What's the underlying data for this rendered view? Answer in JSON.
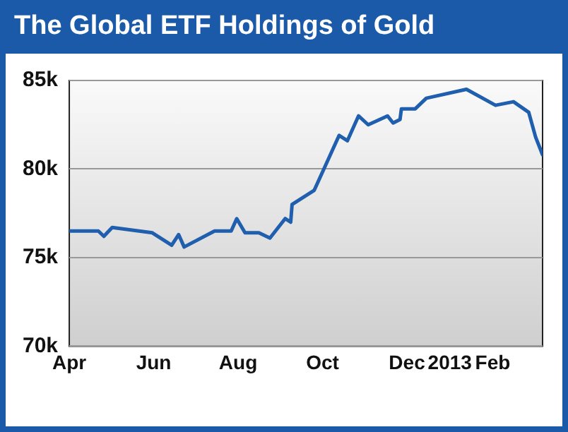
{
  "chart_data": {
    "type": "line",
    "title": "The Global ETF Holdings of Gold",
    "x": [
      "2012-04-01",
      "2012-04-22",
      "2012-04-26",
      "2012-05-02",
      "2012-05-31",
      "2012-06-14",
      "2012-06-19",
      "2012-06-23",
      "2012-07-15",
      "2012-07-27",
      "2012-07-31",
      "2012-08-06",
      "2012-08-16",
      "2012-08-24",
      "2012-09-04",
      "2012-09-08",
      "2012-09-09",
      "2012-09-25",
      "2012-10-13",
      "2012-10-19",
      "2012-10-27",
      "2012-11-03",
      "2012-11-17",
      "2012-11-21",
      "2012-11-26",
      "2012-11-27",
      "2012-12-07",
      "2012-12-15",
      "2013-01-13",
      "2013-02-03",
      "2013-02-16",
      "2013-02-27",
      "2013-03-04",
      "2013-03-09"
    ],
    "series": [
      {
        "color": "#1f5fad",
        "values": [
          76500,
          76500,
          76200,
          76700,
          76400,
          75700,
          76300,
          75600,
          76500,
          76500,
          77200,
          76400,
          76400,
          76100,
          77200,
          77000,
          78000,
          78800,
          81900,
          81600,
          83000,
          82500,
          83000,
          82600,
          82800,
          83400,
          83400,
          84000,
          84500,
          83600,
          83800,
          83200,
          81800,
          80800
        ]
      }
    ],
    "xlim": [
      "2012-04-01",
      "2013-03-09"
    ],
    "xticks": [
      {
        "value": "2012-04-01",
        "label": "Apr"
      },
      {
        "value": "2012-06-01",
        "label": "Jun"
      },
      {
        "value": "2012-08-01",
        "label": "Aug"
      },
      {
        "value": "2012-10-01",
        "label": "Oct"
      },
      {
        "value": "2012-12-01",
        "label": "Dec"
      },
      {
        "value": "2013-01-01",
        "label": "2013"
      },
      {
        "value": "2013-02-01",
        "label": "Feb"
      }
    ],
    "ylim": [
      70000,
      85000
    ],
    "yticks": [
      {
        "value": 70000,
        "label": "70k"
      },
      {
        "value": 75000,
        "label": "75k"
      },
      {
        "value": 80000,
        "label": "80k"
      },
      {
        "value": 85000,
        "label": "85k"
      }
    ],
    "grid": "y",
    "legend": false,
    "marker": "none",
    "line_style": "solid"
  }
}
